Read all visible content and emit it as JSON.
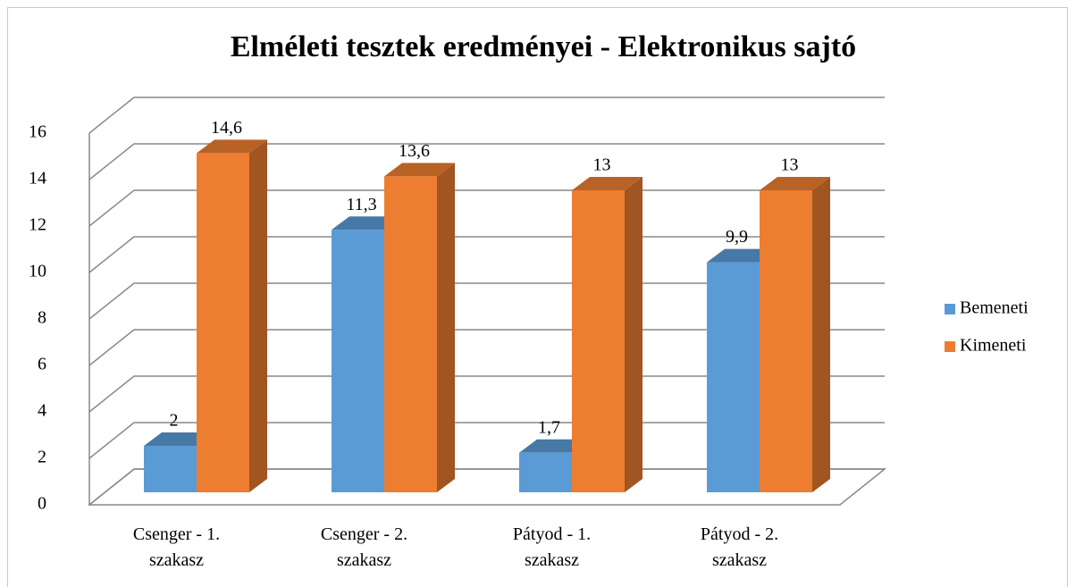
{
  "chart_data": {
    "type": "bar3d",
    "title": "Elméleti tesztek eredményei - Elektronikus sajtó",
    "categories": [
      "Csenger - 1. szakasz",
      "Csenger - 2. szakasz",
      "Pátyod - 1. szakasz",
      "Pátyod - 2. szakasz"
    ],
    "series": [
      {
        "name": "Bemeneti",
        "color": "#5b9bd5",
        "values": [
          2,
          11.3,
          1.7,
          9.9
        ],
        "value_labels": [
          "2",
          "11,3",
          "1,7",
          "9,9"
        ]
      },
      {
        "name": "Kimeneti",
        "color": "#ed7d31",
        "values": [
          14.6,
          13.6,
          13,
          13
        ],
        "value_labels": [
          "14,6",
          "13,6",
          "13",
          "13"
        ]
      }
    ],
    "ylim": [
      0,
      16
    ],
    "yticks": [
      0,
      2,
      4,
      6,
      8,
      10,
      12,
      14,
      16
    ],
    "grid": true,
    "legend": "right"
  }
}
